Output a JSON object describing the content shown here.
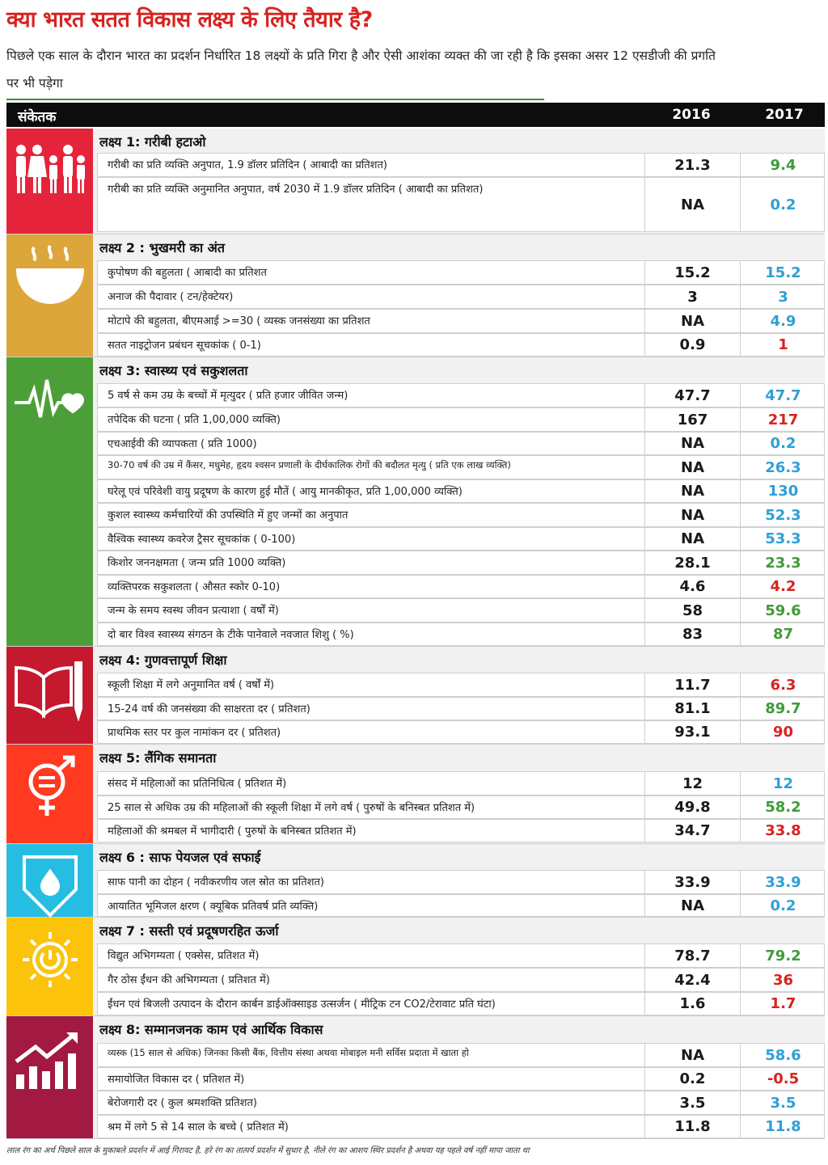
{
  "title": "क्या भारत सतत विकास लक्ष्य के लिए तैयार है?",
  "subtitle": "पिछले एक साल के दौरान भारत का प्रदर्शन निर्धारित 18 लक्ष्यों के प्रति गिरा है और ऐसी आशंका व्यक्त की जा रही है कि इसका असर 12 एसडीजी की प्रगति पर भी पड़ेगा",
  "header": {
    "label": "संकेतक",
    "y2016": "2016",
    "y2017": "2017"
  },
  "colors": {
    "goal1": "#e5243b",
    "goal2": "#dda63a",
    "goal3": "#4c9f38",
    "goal4": "#c5192d",
    "goal5": "#ff3a21",
    "goal6": "#26bde2",
    "goal7": "#fcc30b",
    "goal8": "#a21942",
    "worse": "#d7231f",
    "better": "#3f9b3a",
    "stable": "#2f9fd5"
  },
  "sections": [
    {
      "title": "लक्ष्य 1: गरीबी हटाओ",
      "icon": "family-icon",
      "rows": [
        {
          "label": "गरीबी का प्रति व्यक्ति अनुपात, 1.9 डॉलर प्रतिदिन ( आबादी का प्रतिशत)",
          "v2016": "21.3",
          "v2017": "9.4",
          "trend": "green"
        },
        {
          "label": "गरीबी का प्रति व्यक्ति अनुमानित अनुपात, वर्ष 2030 में 1.9 डॉलर प्रतिदिन ( आबादी का प्रतिशत)",
          "v2016": "NA",
          "v2017": "0.2",
          "trend": "blue"
        }
      ]
    },
    {
      "title": "लक्ष्य 2 : भुखमरी का अंत",
      "icon": "bowl-icon",
      "rows": [
        {
          "label": "कुपोषण की बहुलता ( आबादी का प्रतिशत",
          "v2016": "15.2",
          "v2017": "15.2",
          "trend": "blue"
        },
        {
          "label": "अनाज की पैदावार ( टन/हेक्टेयर)",
          "v2016": "3",
          "v2017": "3",
          "trend": "blue"
        },
        {
          "label": "मोटापे की बहुलता, बीएमआई >=30 ( व्यस्क जनसंख्या का प्रतिशत",
          "v2016": "NA",
          "v2017": "4.9",
          "trend": "blue"
        },
        {
          "label": "सतत नाइट्रोजन प्रबंधन सूचकांक ( 0-1)",
          "v2016": "0.9",
          "v2017": "1",
          "trend": "red"
        }
      ]
    },
    {
      "title": "लक्ष्य 3: स्वास्थ्य एवं सकुशलता",
      "icon": "heartbeat-icon",
      "rows": [
        {
          "label": "5 वर्ष से कम उम्र के बच्चों में मृत्युदर ( प्रति हजार जीवित जन्म)",
          "v2016": "47.7",
          "v2017": "47.7",
          "trend": "blue"
        },
        {
          "label": "तपेदिक की घटना ( प्रति 1,00,000 व्यक्ति)",
          "v2016": "167",
          "v2017": "217",
          "trend": "red"
        },
        {
          "label": "एचआईवी की व्यापकता ( प्रति 1000)",
          "v2016": "NA",
          "v2017": "0.2",
          "trend": "blue"
        },
        {
          "label": "30-70 वर्ष की उम्र में कैंसर, मधुमेह, हृदय श्वसन प्रणाली के दीर्घकालिक रोगों की बदौलत मृत्यु ( प्रति एक लाख व्यक्ति)",
          "v2016": "NA",
          "v2017": "26.3",
          "trend": "blue"
        },
        {
          "label": "घरेलू एवं परिवेशी वायु प्रदूषण के कारण हुई मौतें ( आयु मानकीकृत, प्रति 1,00,000 व्यक्ति)",
          "v2016": "NA",
          "v2017": "130",
          "trend": "blue"
        },
        {
          "label": "कुशल स्वास्थ्य कर्मचारियों की उपस्थिति में हुए जन्मों का अनुपात",
          "v2016": "NA",
          "v2017": "52.3",
          "trend": "blue"
        },
        {
          "label": "वैश्विक स्वास्थ्य कवरेज ट्रैसर सूचकांक ( 0-100)",
          "v2016": "NA",
          "v2017": "53.3",
          "trend": "blue"
        },
        {
          "label": "किशोर जननक्षमता ( जन्म प्रति 1000 व्यक्ति)",
          "v2016": "28.1",
          "v2017": "23.3",
          "trend": "green"
        },
        {
          "label": "व्यक्तिपरक सकुशलता ( औसत स्कोर 0-10)",
          "v2016": "4.6",
          "v2017": "4.2",
          "trend": "red"
        },
        {
          "label": "जन्म के समय स्वस्थ जीवन प्रत्याशा ( वर्षों में)",
          "v2016": "58",
          "v2017": "59.6",
          "trend": "green"
        },
        {
          "label": "दो बार विश्व स्वास्थ्य संगठन के टीके पानेवाले नवजात शिशु ( %)",
          "v2016": "83",
          "v2017": "87",
          "trend": "green"
        }
      ]
    },
    {
      "title": "लक्ष्य 4: गुणवत्तापूर्ण शिक्षा",
      "icon": "book-icon",
      "rows": [
        {
          "label": "स्कूली शिक्षा में लगे अनुमानित वर्ष ( वर्षों में)",
          "v2016": "11.7",
          "v2017": "6.3",
          "trend": "red"
        },
        {
          "label": "15-24 वर्ष की जनसंख्या की साक्षरता दर ( प्रतिशत)",
          "v2016": "81.1",
          "v2017": "89.7",
          "trend": "green"
        },
        {
          "label": "प्राथमिक स्तर पर कुल नामांकन दर ( प्रतिशत)",
          "v2016": "93.1",
          "v2017": "90",
          "trend": "red"
        }
      ]
    },
    {
      "title": "लक्ष्य 5: लैंगिक समानता",
      "icon": "gender-equality-icon",
      "rows": [
        {
          "label": "संसद में महिलाओं का प्रतिनिधित्व ( प्रतिशत में)",
          "v2016": "12",
          "v2017": "12",
          "trend": "blue"
        },
        {
          "label": "25 साल से अधिक उम्र की महिलाओं की स्कूली शिक्षा में लगे वर्ष ( पुरुषों के बनिस्बत प्रतिशत में)",
          "v2016": "49.8",
          "v2017": "58.2",
          "trend": "green"
        },
        {
          "label": "महिलाओं की श्रमबल में भागीदारी ( पुरुषों के बनिस्बत प्रतिशत में)",
          "v2016": "34.7",
          "v2017": "33.8",
          "trend": "red"
        }
      ]
    },
    {
      "title": "लक्ष्य 6 : साफ पेयजल एवं सफाई",
      "icon": "water-drop-icon",
      "rows": [
        {
          "label": "साफ पानी का दोहन ( नवीकरणीय जल स्रोत का प्रतिशत)",
          "v2016": "33.9",
          "v2017": "33.9",
          "trend": "blue"
        },
        {
          "label": "आयातित भूमिजल क्षरण ( क्यूबिक प्रतिवर्ष प्रति व्यक्ति)",
          "v2016": "NA",
          "v2017": "0.2",
          "trend": "blue"
        }
      ]
    },
    {
      "title": "लक्ष्य 7 : सस्ती एवं प्रदूषणरहित ऊर्जा",
      "icon": "sun-power-icon",
      "rows": [
        {
          "label": "विद्युत अभिगम्यता ( एक्सेस, प्रतिशत में)",
          "v2016": "78.7",
          "v2017": "79.2",
          "trend": "green"
        },
        {
          "label": "गैर ठोस ईंधन की अभिगम्यता ( प्रतिशत में)",
          "v2016": "42.4",
          "v2017": "36",
          "trend": "red"
        },
        {
          "label": "ईंधन एवं बिजली उत्पादन के दौरान कार्बन डाईऑक्साइड उत्सर्जन ( मीट्रिक टन CO2/टेरावाट प्रति घंटा)",
          "v2016": "1.6",
          "v2017": "1.7",
          "trend": "red"
        }
      ]
    },
    {
      "title": "लक्ष्य 8: सम्मानजनक काम एवं आर्थिक विकास",
      "icon": "growth-chart-icon",
      "rows": [
        {
          "label": "व्यस्क (15 साल से अधिक) जिनका किसी बैंक, वित्तीय संस्था अथवा मोबाइल मनी सर्विस प्रदाता में खाता हो",
          "v2016": "NA",
          "v2017": "58.6",
          "trend": "blue"
        },
        {
          "label": "समायोजित विकास दर ( प्रतिशत में)",
          "v2016": "0.2",
          "v2017": "-0.5",
          "trend": "red"
        },
        {
          "label": "बेरोजगारी दर ( कुल श्रमशक्ति प्रतिशत)",
          "v2016": "3.5",
          "v2017": "3.5",
          "trend": "blue"
        },
        {
          "label": "श्रम में लगे 5 से 14 साल के बच्चे ( प्रतिशत में)",
          "v2016": "11.8",
          "v2017": "11.8",
          "trend": "blue"
        }
      ]
    }
  ],
  "footnote": "लाल रंग का अर्थ पिछले साल के मुकाबले प्रदर्शन में आई गिरावट है, हरे रंग का तात्पर्य प्रदर्शन में सुधार है, नीले रंग का आशय स्थिर प्रदर्शन है अथवा यह पहले वर्ष नहीं मापा जाता था"
}
